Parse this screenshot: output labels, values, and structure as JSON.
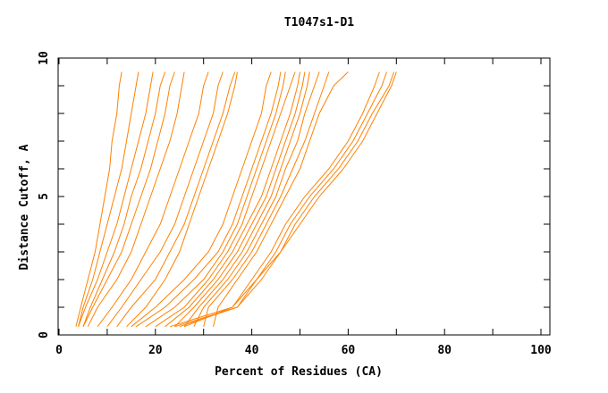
{
  "chart_data": {
    "type": "line",
    "title": "T1047s1-D1",
    "xlabel": "Percent of Residues (CA)",
    "ylabel": "Distance Cutoff, A",
    "xlim": [
      0,
      100
    ],
    "ylim": [
      0,
      10
    ],
    "x_ticks": [
      0,
      20,
      40,
      60,
      80,
      100
    ],
    "y_ticks": [
      0,
      5,
      10
    ],
    "grid": false,
    "line_color": "#ff8000",
    "y_levels": [
      0.3,
      1,
      2,
      3,
      4,
      5,
      6,
      7,
      8,
      9,
      9.5
    ],
    "series": [
      {
        "x": [
          3.5,
          4.5,
          6,
          7.5,
          8.5,
          9.5,
          10.5,
          11,
          12,
          12.5,
          13
        ]
      },
      {
        "x": [
          4,
          5,
          7,
          8.5,
          10,
          11.5,
          13,
          14,
          15,
          16,
          16.5
        ]
      },
      {
        "x": [
          4,
          5.5,
          8,
          10,
          12,
          13.5,
          15,
          16.5,
          18,
          19,
          19.5
        ]
      },
      {
        "x": [
          5,
          6.5,
          9,
          11.5,
          13.5,
          15,
          17,
          18.5,
          20,
          21,
          22
        ]
      },
      {
        "x": [
          5,
          7,
          10,
          13,
          15,
          17,
          19,
          20.5,
          22,
          23,
          24
        ]
      },
      {
        "x": [
          6,
          8,
          12,
          15,
          17,
          19,
          21,
          23,
          24.5,
          25.5,
          26
        ]
      },
      {
        "x": [
          8,
          11,
          15,
          18,
          21,
          23,
          25,
          27,
          29,
          30,
          31
        ]
      },
      {
        "x": [
          10,
          13,
          17,
          21,
          24,
          26,
          28,
          30,
          32,
          33,
          34
        ]
      },
      {
        "x": [
          12,
          15,
          20,
          23,
          26,
          28,
          30,
          32,
          34,
          35.5,
          36.5
        ]
      },
      {
        "x": [
          14,
          18,
          22,
          25,
          27,
          29,
          31,
          33,
          35,
          36.5,
          37
        ]
      },
      {
        "x": [
          15,
          20,
          26,
          31,
          34,
          36,
          38,
          40,
          42,
          43,
          44
        ]
      },
      {
        "x": [
          16,
          22,
          28,
          33,
          36,
          38,
          40,
          42,
          44,
          45.5,
          46
        ]
      },
      {
        "x": [
          18,
          24,
          30,
          34,
          37,
          39,
          41,
          43,
          45,
          46.5,
          47
        ]
      },
      {
        "x": [
          20,
          26,
          31,
          35,
          38,
          40,
          42,
          44,
          46,
          48,
          49
        ]
      },
      {
        "x": [
          22,
          27,
          32,
          36,
          39,
          42,
          44,
          46,
          48,
          49.5,
          50
        ]
      },
      {
        "x": [
          24,
          28,
          33,
          37,
          40,
          43,
          45,
          47,
          49,
          50.5,
          51
        ]
      },
      {
        "x": [
          26,
          29,
          34,
          38,
          41,
          44,
          46,
          48,
          50,
          51.5,
          52
        ]
      },
      {
        "x": [
          28,
          30,
          35,
          39,
          42,
          45,
          47,
          49.5,
          51,
          53,
          54
        ]
      },
      {
        "x": [
          30,
          31,
          36,
          40,
          43,
          46,
          48.5,
          51,
          53,
          55,
          56
        ]
      },
      {
        "x": [
          32,
          33,
          37,
          41,
          44,
          47,
          50,
          52,
          54,
          57,
          60
        ]
      },
      {
        "x": [
          23,
          36,
          40,
          44,
          47,
          51,
          56,
          60,
          63,
          65.5,
          66.5
        ]
      },
      {
        "x": [
          24,
          37,
          41,
          45,
          48,
          52,
          57,
          61,
          64,
          67,
          68
        ]
      },
      {
        "x": [
          25,
          37,
          42,
          46,
          49,
          53,
          58,
          62,
          65,
          68.5,
          69.5
        ]
      },
      {
        "x": [
          26,
          36,
          41,
          46,
          50,
          54,
          59,
          63,
          66,
          69,
          70
        ]
      }
    ]
  }
}
